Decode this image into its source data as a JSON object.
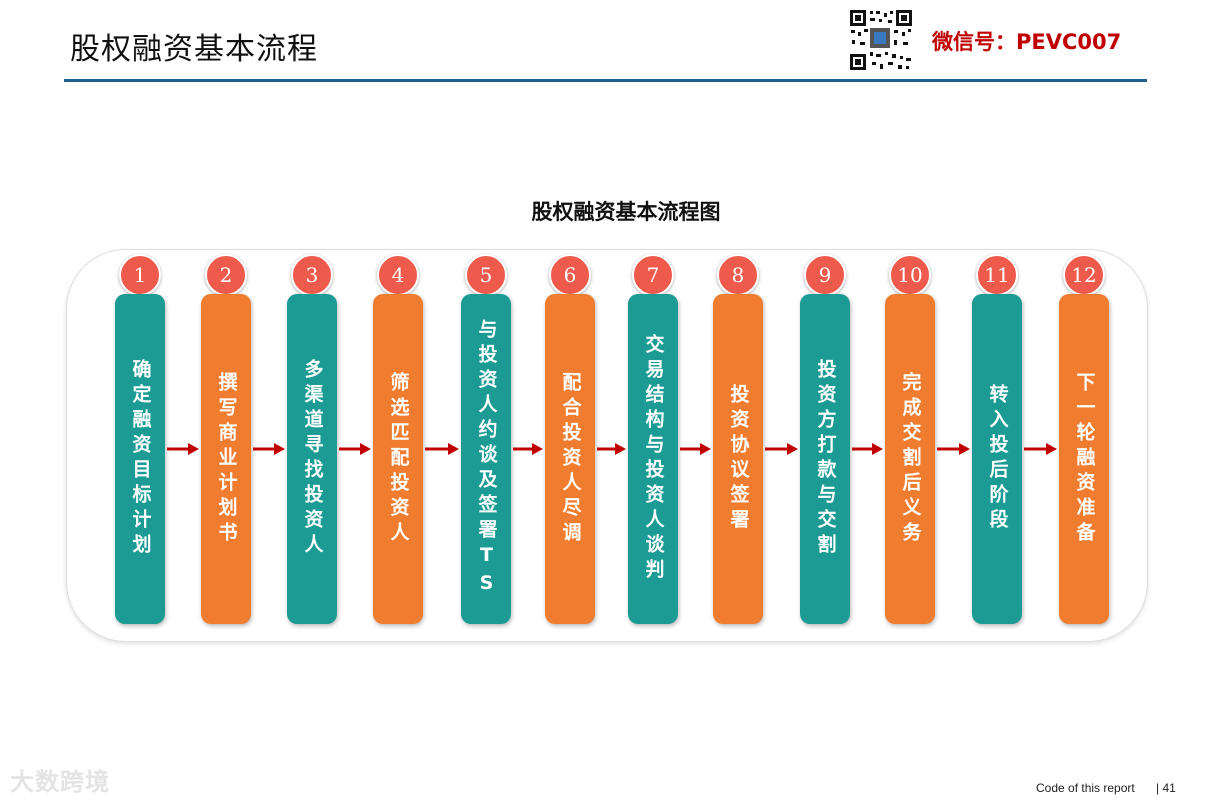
{
  "slide_title": "股权融资基本流程",
  "wechat": "微信号：PEVC007",
  "diagram_title": "股权融资基本流程图",
  "colors": {
    "teal": "#1b9b93",
    "orange": "#f07c2f",
    "badge": "#ee5a4c",
    "arrow": "#c00000",
    "rule": "#1f5f8b"
  },
  "steps": [
    {
      "num": "1",
      "label": "确定融资目标计划",
      "color": "teal"
    },
    {
      "num": "2",
      "label": "撰写商业计划书",
      "color": "orange"
    },
    {
      "num": "3",
      "label": "多渠道寻找投资人",
      "color": "teal"
    },
    {
      "num": "4",
      "label": "筛选匹配投资人",
      "color": "orange"
    },
    {
      "num": "5",
      "label": "与投资人约谈及签署TS",
      "color": "teal"
    },
    {
      "num": "6",
      "label": "配合投资人尽调",
      "color": "orange"
    },
    {
      "num": "7",
      "label": "交易结构与投资人谈判",
      "color": "teal"
    },
    {
      "num": "8",
      "label": "投资协议签署",
      "color": "orange"
    },
    {
      "num": "9",
      "label": "投资方打款与交割",
      "color": "teal"
    },
    {
      "num": "10",
      "label": "完成交割后义务",
      "color": "orange"
    },
    {
      "num": "11",
      "label": "转入投后阶段",
      "color": "teal"
    },
    {
      "num": "12",
      "label": "下一轮融资准备",
      "color": "orange"
    }
  ],
  "watermark": "大数跨境",
  "footer": {
    "code": "Code of this report",
    "page": "| 41"
  }
}
